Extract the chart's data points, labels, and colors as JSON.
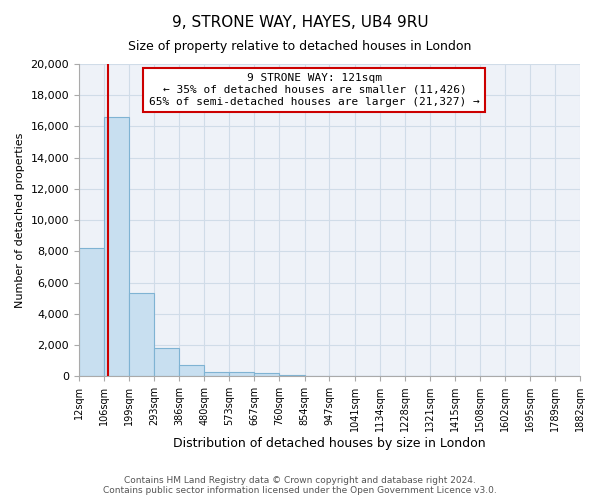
{
  "title": "9, STRONE WAY, HAYES, UB4 9RU",
  "subtitle": "Size of property relative to detached houses in London",
  "xlabel": "Distribution of detached houses by size in London",
  "ylabel": "Number of detached properties",
  "bin_edges": [
    12,
    106,
    199,
    293,
    386,
    480,
    573,
    667,
    760,
    854,
    947,
    1041,
    1134,
    1228,
    1321,
    1415,
    1508,
    1602,
    1695,
    1789,
    1882
  ],
  "bar_heights": [
    8200,
    16600,
    5300,
    1800,
    750,
    300,
    270,
    190,
    100,
    0,
    0,
    0,
    0,
    0,
    0,
    0,
    0,
    0,
    0,
    0
  ],
  "bar_color": "#c8dff0",
  "bar_edgecolor": "#7fb3d3",
  "red_line_x": 121,
  "annotation_title": "9 STRONE WAY: 121sqm",
  "annotation_line1": "← 35% of detached houses are smaller (11,426)",
  "annotation_line2": "65% of semi-detached houses are larger (21,327) →",
  "annotation_box_color": "#ffffff",
  "annotation_border_color": "#cc0000",
  "red_line_color": "#cc0000",
  "ylim": [
    0,
    20000
  ],
  "yticks": [
    0,
    2000,
    4000,
    6000,
    8000,
    10000,
    12000,
    14000,
    16000,
    18000,
    20000
  ],
  "footnote1": "Contains HM Land Registry data © Crown copyright and database right 2024.",
  "footnote2": "Contains public sector information licensed under the Open Government Licence v3.0.",
  "background_color": "#ffffff",
  "grid_color": "#d0dce8",
  "plot_bg_color": "#eef2f8"
}
